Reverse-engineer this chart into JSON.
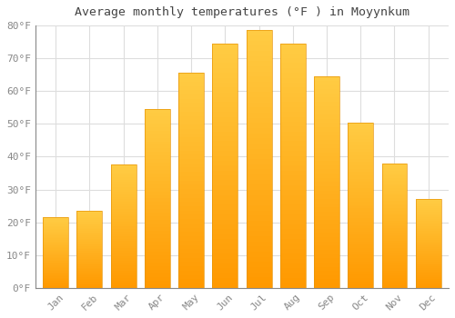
{
  "title": "Average monthly temperatures (°F ) in Moyynkum",
  "months": [
    "Jan",
    "Feb",
    "Mar",
    "Apr",
    "May",
    "Jun",
    "Jul",
    "Aug",
    "Sep",
    "Oct",
    "Nov",
    "Dec"
  ],
  "values": [
    21.5,
    23.5,
    37.5,
    54.5,
    65.5,
    74.5,
    78.5,
    74.5,
    64.5,
    50.5,
    38.0,
    27.0
  ],
  "bar_color": "#FFA500",
  "bar_color_light": "#FFD060",
  "ylim": [
    0,
    80
  ],
  "yticks": [
    0,
    10,
    20,
    30,
    40,
    50,
    60,
    70,
    80
  ],
  "ytick_labels": [
    "0°F",
    "10°F",
    "20°F",
    "30°F",
    "40°F",
    "50°F",
    "60°F",
    "70°F",
    "80°F"
  ],
  "background_color": "#ffffff",
  "grid_color": "#dddddd",
  "title_fontsize": 9.5,
  "tick_fontsize": 8,
  "bar_edge_color": "#E8960A",
  "bar_width": 0.75
}
